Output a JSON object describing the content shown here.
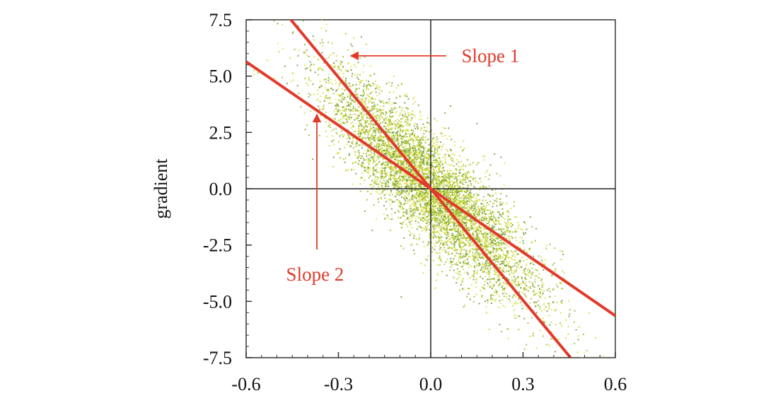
{
  "chart_data": {
    "type": "scatter",
    "title": "",
    "xlabel": "",
    "ylabel": "gradient",
    "xlim": [
      -0.6,
      0.6
    ],
    "ylim": [
      -7.5,
      7.5
    ],
    "x_ticks": [
      "-0.6",
      "-0.3",
      "0.0",
      "0.3",
      "0.6"
    ],
    "y_ticks": [
      "7.5",
      "5.0",
      "2.5",
      "0.0",
      "-2.5",
      "-5.0",
      "-7.5"
    ],
    "x_tick_values": [
      -0.6,
      -0.3,
      0.0,
      0.3,
      0.6
    ],
    "y_tick_values": [
      7.5,
      5.0,
      2.5,
      0.0,
      -2.5,
      -5.0,
      -7.5
    ],
    "grid": false,
    "zero_lines": true,
    "scatter_cloud": {
      "description_count": 6000,
      "center": [
        0.0,
        0.0
      ],
      "trend_slope": -12.5,
      "x_spread": 0.17,
      "residual_spread": 1.0,
      "colors": [
        "#c8d832",
        "#9cbc2c",
        "#6f9a3a",
        "#e0e04a"
      ]
    },
    "lines": [
      {
        "name": "Slope 1",
        "slope": -16.5,
        "intercept": 0.0,
        "color": "#e23a2a"
      },
      {
        "name": "Slope 2",
        "slope": -9.4,
        "intercept": 0.0,
        "color": "#e23a2a"
      }
    ],
    "annotations": [
      {
        "text": "Slope 1",
        "color": "#e23a2a",
        "arrow_from": [
          0.05,
          5.9
        ],
        "arrow_to": [
          -0.26,
          5.9
        ],
        "label_at": [
          0.1,
          5.9
        ]
      },
      {
        "text": "Slope 2",
        "color": "#e23a2a",
        "arrow_from": [
          -0.37,
          -2.7
        ],
        "arrow_to": [
          -0.37,
          3.3
        ],
        "label_at": [
          -0.47,
          -3.8
        ]
      }
    ]
  }
}
